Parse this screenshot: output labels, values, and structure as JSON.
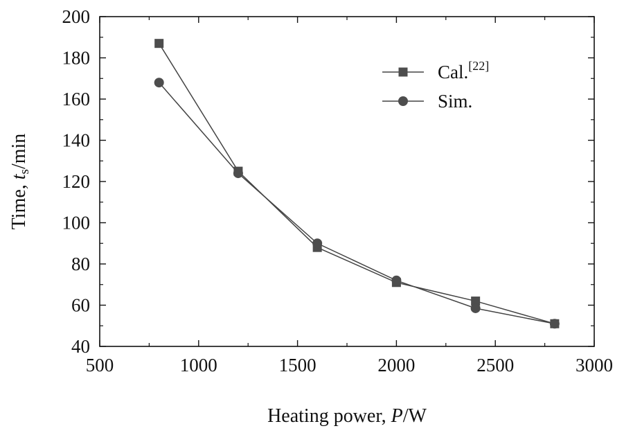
{
  "chart_data": {
    "type": "line",
    "title": "",
    "xlabel": {
      "prefix": "Heating power, ",
      "symbol": "P",
      "unit": "/W"
    },
    "ylabel": {
      "prefix": "Time, ",
      "symbol": "t",
      "subscript": "s",
      "unit": "/min"
    },
    "xlim": [
      500,
      3000
    ],
    "ylim": [
      40,
      200
    ],
    "xticks": [
      500,
      1000,
      1500,
      2000,
      2500,
      3000
    ],
    "yticks": [
      40,
      60,
      80,
      100,
      120,
      140,
      160,
      180,
      200
    ],
    "x_minor_step": 250,
    "y_minor_step": 10,
    "grid": false,
    "legend_position": "top-right",
    "x": [
      800,
      1200,
      1600,
      2000,
      2400,
      2800
    ],
    "series": [
      {
        "name": "Cal.",
        "name_superscript": "[22]",
        "marker": "square",
        "values": [
          187,
          125,
          88,
          71,
          62,
          51
        ]
      },
      {
        "name": "Sim.",
        "name_superscript": "",
        "marker": "circle",
        "values": [
          168,
          124,
          90,
          72,
          58.5,
          51
        ]
      }
    ],
    "colors": {
      "line": "#444444",
      "marker": "#4d4d4d",
      "axis": "#111111"
    }
  }
}
